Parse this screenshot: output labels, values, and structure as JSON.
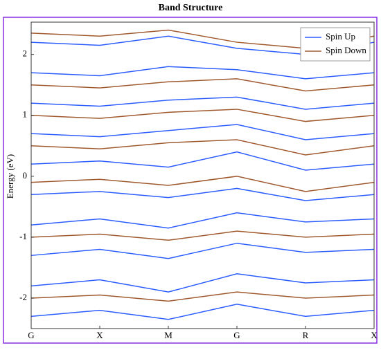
{
  "chart_data": {
    "type": "line",
    "title": "Band Structure",
    "y_label": "Energy (eV)",
    "categories": [
      "G",
      "X",
      "M",
      "G",
      "R",
      "X"
    ],
    "ylim": [
      -2.5,
      2.53
    ],
    "yticks": [
      -2,
      -1,
      0,
      1,
      2
    ],
    "legend": "upper right",
    "series": [
      {
        "name": "Spin Up",
        "color": "#2a5cff",
        "values": [
          -2.3,
          -2.2,
          -2.35,
          -2.1,
          -2.3,
          -2.2
        ]
      },
      {
        "name": null,
        "color": "#2a5cff",
        "values": [
          -1.8,
          -1.7,
          -1.9,
          -1.6,
          -1.75,
          -1.7
        ]
      },
      {
        "name": null,
        "color": "#2a5cff",
        "values": [
          -1.3,
          -1.2,
          -1.35,
          -1.1,
          -1.25,
          -1.2
        ]
      },
      {
        "name": null,
        "color": "#2a5cff",
        "values": [
          -0.8,
          -0.7,
          -0.85,
          -0.6,
          -0.75,
          -0.7
        ]
      },
      {
        "name": null,
        "color": "#2a5cff",
        "values": [
          -0.3,
          -0.25,
          -0.35,
          -0.2,
          -0.4,
          -0.3
        ]
      },
      {
        "name": null,
        "color": "#2a5cff",
        "values": [
          0.2,
          0.25,
          0.15,
          0.4,
          0.1,
          0.2
        ]
      },
      {
        "name": null,
        "color": "#2a5cff",
        "values": [
          0.7,
          0.65,
          0.75,
          0.85,
          0.6,
          0.7
        ]
      },
      {
        "name": null,
        "color": "#2a5cff",
        "values": [
          1.2,
          1.15,
          1.25,
          1.3,
          1.1,
          1.2
        ]
      },
      {
        "name": null,
        "color": "#2a5cff",
        "values": [
          1.7,
          1.65,
          1.8,
          1.75,
          1.6,
          1.7
        ]
      },
      {
        "name": null,
        "color": "#2a5cff",
        "values": [
          2.2,
          2.15,
          2.3,
          2.1,
          2.0,
          2.2
        ]
      },
      {
        "name": "Spin Down",
        "color": "#a0582d",
        "values": [
          -2.0,
          -1.95,
          -2.05,
          -1.9,
          -2.0,
          -1.95
        ]
      },
      {
        "name": null,
        "color": "#a0582d",
        "values": [
          -1.0,
          -0.95,
          -1.05,
          -0.9,
          -1.0,
          -0.95
        ]
      },
      {
        "name": null,
        "color": "#a0582d",
        "values": [
          -0.1,
          -0.05,
          -0.15,
          0.0,
          -0.25,
          -0.1
        ]
      },
      {
        "name": null,
        "color": "#a0582d",
        "values": [
          0.5,
          0.45,
          0.55,
          0.6,
          0.35,
          0.5
        ]
      },
      {
        "name": null,
        "color": "#a0582d",
        "values": [
          1.0,
          0.95,
          1.05,
          1.1,
          0.9,
          1.0
        ]
      },
      {
        "name": null,
        "color": "#a0582d",
        "values": [
          1.5,
          1.45,
          1.55,
          1.6,
          1.4,
          1.5
        ]
      },
      {
        "name": null,
        "color": "#a0582d",
        "values": [
          2.35,
          2.3,
          2.4,
          2.2,
          2.1,
          2.3
        ]
      }
    ]
  }
}
